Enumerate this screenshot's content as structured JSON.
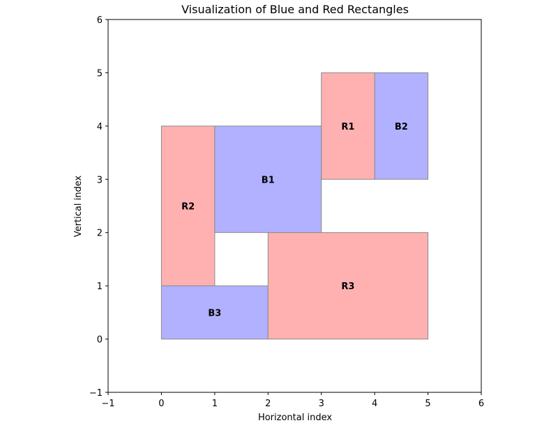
{
  "chart_data": {
    "type": "rectangles",
    "title": "Visualization of Blue and Red Rectangles",
    "xlabel": "Horizontal index",
    "ylabel": "Vertical index",
    "xlim": [
      -1,
      6
    ],
    "ylim": [
      -1,
      6
    ],
    "xticks": [
      -1,
      0,
      1,
      2,
      3,
      4,
      5,
      6
    ],
    "yticks": [
      -1,
      0,
      1,
      2,
      3,
      4,
      5,
      6
    ],
    "xtick_labels": [
      "−1",
      "0",
      "1",
      "2",
      "3",
      "4",
      "5",
      "6"
    ],
    "ytick_labels": [
      "−1",
      "0",
      "1",
      "2",
      "3",
      "4",
      "5",
      "6"
    ],
    "grid": false,
    "colors": {
      "red": "#ffb1b1",
      "blue": "#b1b1ff",
      "edge": "#8a8a8a"
    },
    "rectangles": [
      {
        "label": "R1",
        "color": "red",
        "x0": 3,
        "y0": 3,
        "x1": 4,
        "y1": 5
      },
      {
        "label": "B2",
        "color": "blue",
        "x0": 4,
        "y0": 3,
        "x1": 5,
        "y1": 5
      },
      {
        "label": "R2",
        "color": "red",
        "x0": 0,
        "y0": 1,
        "x1": 1,
        "y1": 4
      },
      {
        "label": "B1",
        "color": "blue",
        "x0": 1,
        "y0": 2,
        "x1": 3,
        "y1": 4
      },
      {
        "label": "B3",
        "color": "blue",
        "x0": 0,
        "y0": 0,
        "x1": 2,
        "y1": 1
      },
      {
        "label": "R3",
        "color": "red",
        "x0": 2,
        "y0": 0,
        "x1": 5,
        "y1": 2
      }
    ]
  }
}
